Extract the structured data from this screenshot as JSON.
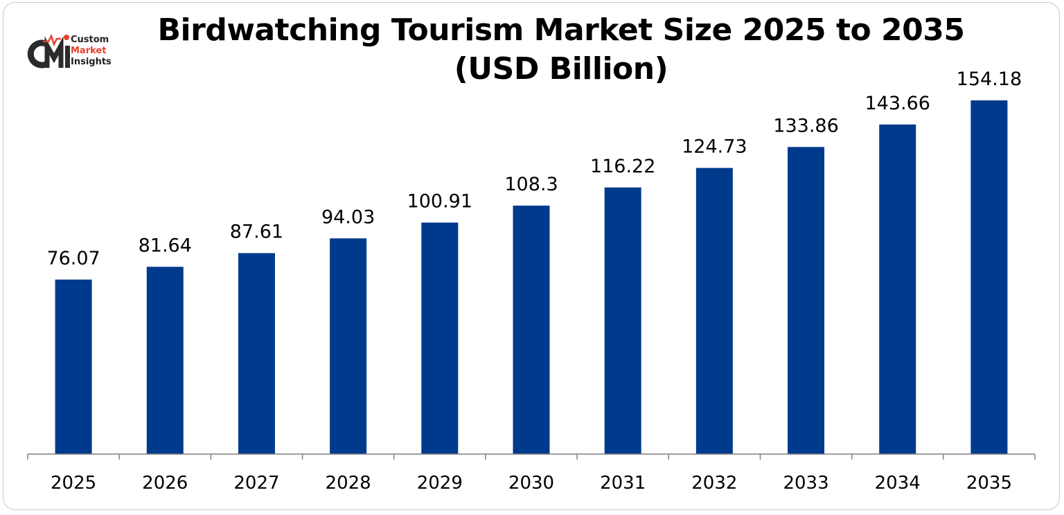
{
  "header": {
    "title_line1": "Birdwatching Tourism Market Size 2025 to 2035",
    "title_line2": "(USD Billion)"
  },
  "logo": {
    "mark": "CMI",
    "line1": "Custom",
    "line2": "Market",
    "line3": "Insights",
    "icon": "cmi-logo-icon"
  },
  "colors": {
    "bar": "#003a8c",
    "logo_accent": "#e8402a"
  },
  "chart_data": {
    "type": "bar",
    "title": "Birdwatching Tourism Market Size 2025 to 2035 (USD Billion)",
    "xlabel": "",
    "ylabel": "",
    "categories": [
      "2025",
      "2026",
      "2027",
      "2028",
      "2029",
      "2030",
      "2031",
      "2032",
      "2033",
      "2034",
      "2035"
    ],
    "values": [
      76.07,
      81.64,
      87.61,
      94.03,
      100.91,
      108.3,
      116.22,
      124.73,
      133.86,
      143.66,
      154.18
    ],
    "value_labels": [
      "76.07",
      "81.64",
      "87.61",
      "94.03",
      "100.91",
      "108.3",
      "116.22",
      "124.73",
      "133.86",
      "143.66",
      "154.18"
    ],
    "ylim": [
      0,
      170
    ],
    "grid": false,
    "legend": "none"
  }
}
